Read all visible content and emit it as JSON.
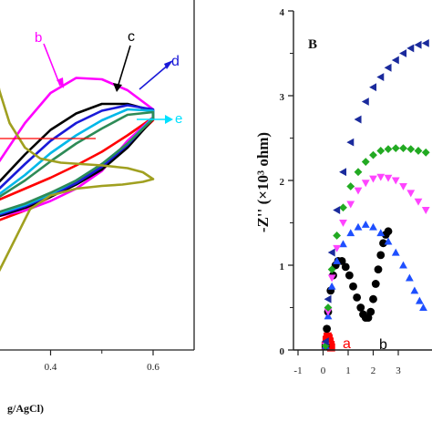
{
  "chart_data": [
    {
      "type": "line",
      "panel": "A",
      "xlabel": "g/AgCl)",
      "x_ticks": [
        "0.4",
        "0.6"
      ],
      "xlim": [
        0.25,
        0.68
      ],
      "ylim": [
        -1.0,
        1.0
      ],
      "grid": false,
      "series": [
        {
          "name": "a",
          "color": "#ff0000",
          "x": [
            0.25,
            0.3,
            0.35,
            0.4,
            0.45,
            0.5,
            0.55,
            0.6,
            0.6,
            0.55,
            0.5,
            0.45,
            0.4,
            0.35,
            0.3,
            0.25
          ],
          "y": [
            -0.27,
            -0.18,
            -0.1,
            -0.02,
            0.07,
            0.17,
            0.29,
            0.42,
            0.4,
            0.22,
            0.08,
            -0.05,
            -0.16,
            -0.26,
            -0.33,
            -0.35
          ]
        },
        {
          "name": "b",
          "color": "#ff00ff",
          "x": [
            0.25,
            0.3,
            0.35,
            0.4,
            0.45,
            0.5,
            0.55,
            0.6,
            0.6,
            0.55,
            0.5,
            0.45,
            0.4,
            0.35,
            0.3,
            0.25
          ],
          "y": [
            -0.15,
            0.1,
            0.38,
            0.6,
            0.71,
            0.7,
            0.62,
            0.48,
            0.42,
            0.25,
            0.03,
            -0.1,
            -0.19,
            -0.26,
            -0.3,
            -0.32
          ]
        },
        {
          "name": "c",
          "color": "#000000",
          "x": [
            0.25,
            0.3,
            0.35,
            0.4,
            0.45,
            0.5,
            0.55,
            0.6,
            0.6,
            0.55,
            0.5,
            0.45,
            0.4,
            0.35,
            0.3,
            0.25
          ],
          "y": [
            -0.22,
            -0.05,
            0.15,
            0.33,
            0.45,
            0.52,
            0.52,
            0.47,
            0.41,
            0.2,
            0.04,
            -0.07,
            -0.16,
            -0.24,
            -0.3,
            -0.32
          ]
        },
        {
          "name": "d",
          "color": "#1a1ad8",
          "x": [
            0.25,
            0.3,
            0.35,
            0.4,
            0.45,
            0.5,
            0.55,
            0.6,
            0.6,
            0.55,
            0.5,
            0.45,
            0.4,
            0.35,
            0.3,
            0.25
          ],
          "y": [
            -0.25,
            -0.1,
            0.08,
            0.25,
            0.38,
            0.47,
            0.51,
            0.48,
            0.42,
            0.22,
            0.06,
            -0.06,
            -0.15,
            -0.23,
            -0.29,
            -0.31
          ]
        },
        {
          "name": "e",
          "color": "#00b8e8",
          "x": [
            0.25,
            0.3,
            0.35,
            0.4,
            0.45,
            0.5,
            0.55,
            0.6,
            0.6,
            0.55,
            0.5,
            0.45,
            0.4,
            0.35,
            0.3,
            0.25
          ],
          "y": [
            -0.26,
            -0.14,
            0.0,
            0.16,
            0.29,
            0.4,
            0.48,
            0.47,
            0.42,
            0.23,
            0.08,
            -0.04,
            -0.14,
            -0.22,
            -0.28,
            -0.3
          ]
        },
        {
          "name": "",
          "color": "#2e8b57",
          "x": [
            0.25,
            0.3,
            0.35,
            0.4,
            0.45,
            0.5,
            0.55,
            0.6,
            0.6,
            0.55,
            0.5,
            0.45,
            0.4,
            0.35,
            0.3,
            0.25
          ],
          "y": [
            -0.26,
            -0.16,
            -0.04,
            0.1,
            0.23,
            0.34,
            0.44,
            0.46,
            0.41,
            0.23,
            0.08,
            -0.04,
            -0.13,
            -0.21,
            -0.27,
            -0.29
          ]
        },
        {
          "name": "",
          "color": "#a0a020",
          "x": [
            0.25,
            0.26,
            0.27,
            0.28,
            0.29,
            0.3,
            0.32,
            0.35,
            0.38,
            0.42,
            0.46,
            0.5,
            0.55,
            0.58,
            0.6,
            0.58,
            0.54,
            0.5,
            0.45,
            0.4,
            0.36,
            0.32,
            0.3,
            0.28,
            0.27,
            0.265,
            0.26,
            0.25
          ],
          "y": [
            0.35,
            0.55,
            0.85,
            0.92,
            0.83,
            0.62,
            0.38,
            0.2,
            0.12,
            0.09,
            0.08,
            0.07,
            0.05,
            0.02,
            -0.03,
            -0.05,
            -0.07,
            -0.08,
            -0.1,
            -0.15,
            -0.25,
            -0.55,
            -0.7,
            -0.8,
            -0.7,
            -0.55,
            -0.42,
            -0.3
          ]
        }
      ],
      "annotations": [
        {
          "text": "b",
          "color": "#ff00ff"
        },
        {
          "text": "c",
          "color": "#000000"
        },
        {
          "text": "d",
          "color": "#1a1ad8"
        },
        {
          "text": "e",
          "color": "#00e0ff"
        }
      ]
    },
    {
      "type": "scatter",
      "panel": "B",
      "panel_label": "B",
      "ylabel": "-Z'' (×10³ ohm)",
      "y_ticks": [
        "0",
        "1",
        "2",
        "3",
        "4"
      ],
      "x_ticks": [
        "-1",
        "0",
        "1",
        "2",
        "3"
      ],
      "xlim": [
        -1,
        4.2
      ],
      "ylim": [
        0,
        4
      ],
      "grid": false,
      "series": [
        {
          "name": "a",
          "color": "#ff0000",
          "marker": "square",
          "x": [
            0.1,
            0.14,
            0.18,
            0.22,
            0.26,
            0.3,
            0.32
          ],
          "y": [
            0.05,
            0.12,
            0.16,
            0.14,
            0.1,
            0.06,
            0.03
          ]
        },
        {
          "name": "b",
          "color": "#000000",
          "marker": "circle",
          "x": [
            0.1,
            0.15,
            0.2,
            0.3,
            0.4,
            0.5,
            0.6,
            0.75,
            0.9,
            1.05,
            1.2,
            1.35,
            1.5,
            1.6,
            1.7,
            1.8,
            1.9,
            2.0,
            2.1,
            2.2,
            2.3,
            2.4,
            2.5,
            2.6
          ],
          "y": [
            0.05,
            0.25,
            0.45,
            0.7,
            0.88,
            1.0,
            1.05,
            1.05,
            0.98,
            0.88,
            0.75,
            0.62,
            0.5,
            0.42,
            0.38,
            0.38,
            0.45,
            0.6,
            0.78,
            0.95,
            1.12,
            1.26,
            1.36,
            1.4
          ]
        },
        {
          "name": "",
          "color": "#1e4fff",
          "marker": "triangle-up",
          "x": [
            0.1,
            0.2,
            0.35,
            0.55,
            0.8,
            1.1,
            1.4,
            1.7,
            2.0,
            2.3,
            2.6,
            2.9,
            3.2,
            3.45,
            3.65,
            3.85,
            4.0
          ],
          "y": [
            0.05,
            0.4,
            0.75,
            1.05,
            1.25,
            1.38,
            1.45,
            1.48,
            1.45,
            1.38,
            1.28,
            1.15,
            1.0,
            0.85,
            0.7,
            0.58,
            0.5
          ]
        },
        {
          "name": "",
          "color": "#ff44ff",
          "marker": "triangle-down",
          "x": [
            0.1,
            0.2,
            0.35,
            0.55,
            0.8,
            1.1,
            1.4,
            1.7,
            2.0,
            2.3,
            2.6,
            2.9,
            3.2,
            3.5,
            3.8,
            4.1
          ],
          "y": [
            0.05,
            0.45,
            0.85,
            1.2,
            1.5,
            1.72,
            1.88,
            1.97,
            2.02,
            2.04,
            2.03,
            2.0,
            1.93,
            1.85,
            1.75,
            1.65
          ]
        },
        {
          "name": "",
          "color": "#22aa22",
          "marker": "diamond",
          "x": [
            0.1,
            0.2,
            0.35,
            0.55,
            0.8,
            1.1,
            1.4,
            1.7,
            2.0,
            2.3,
            2.6,
            2.9,
            3.2,
            3.5,
            3.8,
            4.1
          ],
          "y": [
            0.05,
            0.5,
            0.95,
            1.35,
            1.68,
            1.93,
            2.1,
            2.22,
            2.3,
            2.35,
            2.37,
            2.38,
            2.38,
            2.37,
            2.35,
            2.33
          ]
        },
        {
          "name": "",
          "color": "#1a2a9c",
          "marker": "triangle-left",
          "x": [
            0.1,
            0.2,
            0.35,
            0.55,
            0.8,
            1.1,
            1.4,
            1.7,
            2.0,
            2.3,
            2.6,
            2.9,
            3.2,
            3.5,
            3.8,
            4.1
          ],
          "y": [
            0.1,
            0.6,
            1.15,
            1.65,
            2.1,
            2.45,
            2.72,
            2.93,
            3.1,
            3.22,
            3.33,
            3.42,
            3.5,
            3.56,
            3.6,
            3.62
          ]
        }
      ],
      "annotations": [
        {
          "text": "a",
          "color": "#ff0000"
        },
        {
          "text": "b",
          "color": "#000000"
        }
      ]
    }
  ]
}
